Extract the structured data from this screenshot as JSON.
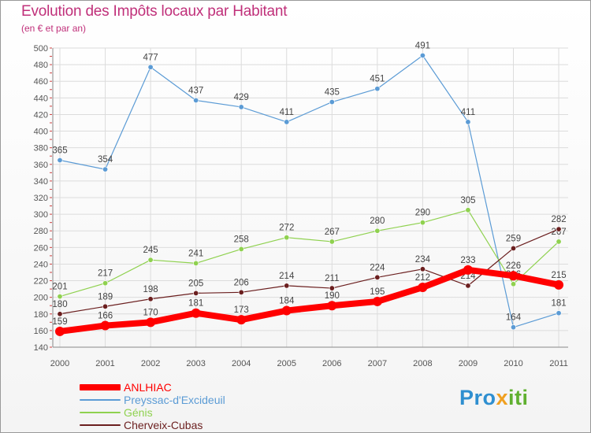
{
  "header": {
    "title": "Evolution des Impôts locaux par Habitant",
    "subtitle": "(en € et par an)"
  },
  "brand": {
    "logo_text": "Proxiti",
    "parts": [
      "Pro",
      "x",
      "iti"
    ]
  },
  "colors": {
    "title": "#c0307a",
    "ANLHIAC": "#ff0000",
    "Preyssac": "#5b9bd5",
    "Genis": "#8fd14f",
    "Cherveix": "#6b1f1f",
    "grid": "#dcdcdc",
    "axis_text": "#555555"
  },
  "chart_data": {
    "type": "line",
    "title": "Evolution des Impôts locaux par Habitant",
    "subtitle": "(en € et par an)",
    "xlabel": "",
    "ylabel": "",
    "ylim": [
      140,
      500
    ],
    "ytick_step": 20,
    "grid": true,
    "legend_position": "bottom-left",
    "categories": [
      "2000",
      "2001",
      "2002",
      "2003",
      "2004",
      "2005",
      "2006",
      "2007",
      "2008",
      "2009",
      "2010",
      "2011"
    ],
    "series": [
      {
        "name": "Preyssac-d'Excideuil",
        "key": "Preyssac",
        "values": [
          365,
          354,
          477,
          437,
          429,
          411,
          435,
          451,
          491,
          411,
          164,
          181
        ],
        "labels": [
          "365",
          "354",
          "477",
          "437",
          "429",
          "411",
          "435",
          "451",
          "491",
          "411",
          "164",
          "181"
        ]
      },
      {
        "name": "Génis",
        "key": "Genis",
        "values": [
          201,
          217,
          245,
          241,
          258,
          272,
          267,
          280,
          290,
          305,
          216,
          267
        ],
        "labels": [
          "201",
          "217",
          "245",
          "241",
          "258",
          "272",
          "267",
          "280",
          "290",
          "305",
          "216",
          "267"
        ]
      },
      {
        "name": "Cherveix-Cubas",
        "key": "Cherveix",
        "values": [
          180,
          189,
          198,
          205,
          206,
          214,
          211,
          224,
          234,
          214,
          259,
          282
        ],
        "labels": [
          "180",
          "189",
          "198",
          "205",
          "206",
          "214",
          "211",
          "224",
          "234",
          "214",
          "259",
          "282"
        ]
      },
      {
        "name": "ANLHIAC",
        "key": "ANLHIAC",
        "values": [
          159,
          166,
          170,
          181,
          173,
          184,
          190,
          195,
          212,
          233,
          226,
          215
        ],
        "labels": [
          "159",
          "166",
          "170",
          "181",
          "173",
          "184",
          "190",
          "195",
          "212",
          "233",
          "226",
          "215"
        ]
      }
    ],
    "legend": [
      "ANLHIAC",
      "Preyssac-d'Excideuil",
      "Génis",
      "Cherveix-Cubas"
    ]
  }
}
